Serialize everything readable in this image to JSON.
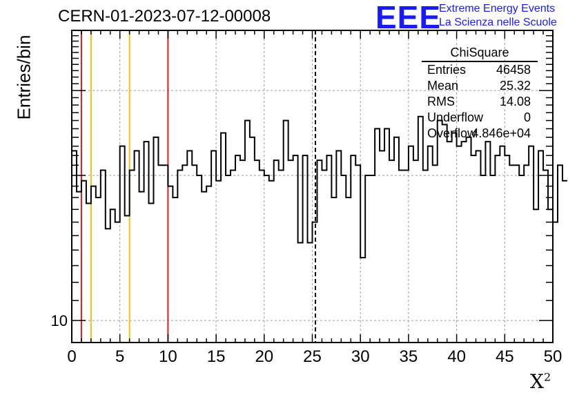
{
  "title": "CERN-01-2023-07-12-00008",
  "logo": {
    "mark": "EEE",
    "line1": "Extreme Energy Events",
    "line2": "La Scienza nelle Scuole",
    "color": "#1a1aff"
  },
  "stats": {
    "name": "ChiSquare",
    "entries_label": "Entries",
    "entries": "46458",
    "mean_label": "Mean",
    "mean": "25.32",
    "rms_label": "RMS",
    "rms": "14.08",
    "underflow_label": "Underflow",
    "underflow": "0",
    "overflow_label": "Overflow",
    "overflow": "4.846e+04"
  },
  "chart_data": {
    "type": "histogram",
    "title": "CERN-01-2023-07-12-00008",
    "xlabel": "X",
    "xlabel_superscript": "2",
    "ylabel": "Entries/bin",
    "xlim": [
      0,
      50
    ],
    "ylim": [
      9,
      40
    ],
    "yscale": "log",
    "x_ticks": [
      "0",
      "5",
      "10",
      "15",
      "20",
      "25",
      "30",
      "35",
      "40",
      "45",
      "50"
    ],
    "y_ticks": [
      "10"
    ],
    "grid": true,
    "bin_width": 0.5,
    "bin_contents": [
      22.5,
      18.5,
      19.5,
      17.5,
      19.0,
      18.0,
      20.5,
      15.5,
      17.0,
      16.0,
      23.0,
      16.5,
      20.5,
      22.5,
      18.5,
      23.5,
      17.5,
      24.0,
      21.0,
      21.0,
      19.0,
      18.0,
      20.5,
      21.0,
      22.5,
      21.0,
      20.0,
      18.5,
      19.0,
      22.5,
      19.5,
      24.5,
      20.0,
      20.5,
      22.0,
      21.5,
      26.0,
      24.0,
      21.5,
      20.5,
      20.0,
      19.5,
      21.5,
      20.5,
      26.0,
      21.5,
      22.0,
      14.5,
      22.0,
      14.5,
      16.0,
      21.5,
      20.5,
      22.0,
      18.0,
      22.5,
      20.0,
      18.0,
      22.0,
      21.0,
      13.5,
      20.0,
      20.0,
      25.0,
      22.5,
      25.0,
      21.5,
      24.0,
      20.5,
      20.5,
      23.0,
      21.5,
      26.5,
      20.5,
      23.0,
      21.0,
      26.0,
      25.5,
      23.5,
      24.5,
      23.0,
      23.5,
      24.0,
      22.0,
      22.5,
      20.0,
      23.5,
      20.0,
      22.0,
      23.0,
      22.0,
      21.0,
      21.0,
      20.0,
      21.0,
      23.0,
      17.0,
      22.5,
      20.5,
      17.0,
      16.0,
      21.0,
      19.5
    ],
    "vertical_lines": [
      {
        "x": 1,
        "color": "#e31a1c",
        "style": "solid"
      },
      {
        "x": 2,
        "color": "#f4c20d",
        "style": "solid"
      },
      {
        "x": 6,
        "color": "#f4c20d",
        "style": "solid"
      },
      {
        "x": 10,
        "color": "#e31a1c",
        "style": "solid"
      },
      {
        "x": 25.32,
        "color": "#000000",
        "style": "dashed"
      }
    ],
    "legend": "top-right stats box"
  }
}
